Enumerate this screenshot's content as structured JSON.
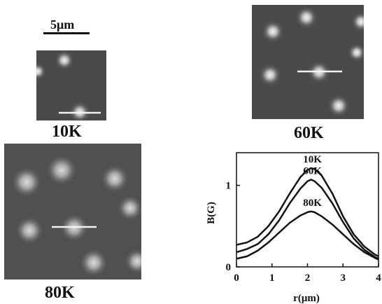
{
  "figure": {
    "scale_bar": {
      "label": "5μm"
    },
    "panels": [
      {
        "id": "10K",
        "label": "10K"
      },
      {
        "id": "60K",
        "label": "60K"
      },
      {
        "id": "80K",
        "label": "80K"
      }
    ]
  },
  "chart_data": {
    "type": "line",
    "xlabel": "r(μm)",
    "ylabel": "B(G)",
    "xlim": [
      0,
      4
    ],
    "ylim": [
      0,
      1.4
    ],
    "xticks": [
      0,
      1,
      2,
      3,
      4
    ],
    "yticks": [
      0,
      1
    ],
    "series": [
      {
        "name": "10K",
        "x": [
          0,
          0.3,
          0.6,
          0.9,
          1.2,
          1.5,
          1.8,
          2.0,
          2.1,
          2.2,
          2.4,
          2.7,
          3.0,
          3.3,
          3.6,
          3.9,
          4.0
        ],
        "y": [
          0.27,
          0.3,
          0.37,
          0.5,
          0.68,
          0.9,
          1.1,
          1.19,
          1.21,
          1.2,
          1.12,
          0.9,
          0.62,
          0.4,
          0.25,
          0.15,
          0.13
        ]
      },
      {
        "name": "60K",
        "x": [
          0,
          0.3,
          0.6,
          0.9,
          1.2,
          1.5,
          1.8,
          2.0,
          2.1,
          2.2,
          2.4,
          2.7,
          3.0,
          3.3,
          3.6,
          3.9,
          4.0
        ],
        "y": [
          0.18,
          0.22,
          0.28,
          0.4,
          0.57,
          0.78,
          0.96,
          1.05,
          1.07,
          1.05,
          0.97,
          0.78,
          0.55,
          0.35,
          0.21,
          0.12,
          0.1
        ]
      },
      {
        "name": "80K",
        "x": [
          0,
          0.3,
          0.6,
          0.9,
          1.2,
          1.5,
          1.8,
          2.0,
          2.1,
          2.2,
          2.4,
          2.7,
          3.0,
          3.3,
          3.6,
          3.9,
          4.0
        ],
        "y": [
          0.1,
          0.13,
          0.2,
          0.3,
          0.42,
          0.54,
          0.63,
          0.67,
          0.68,
          0.67,
          0.62,
          0.52,
          0.4,
          0.28,
          0.18,
          0.11,
          0.09
        ]
      }
    ]
  }
}
